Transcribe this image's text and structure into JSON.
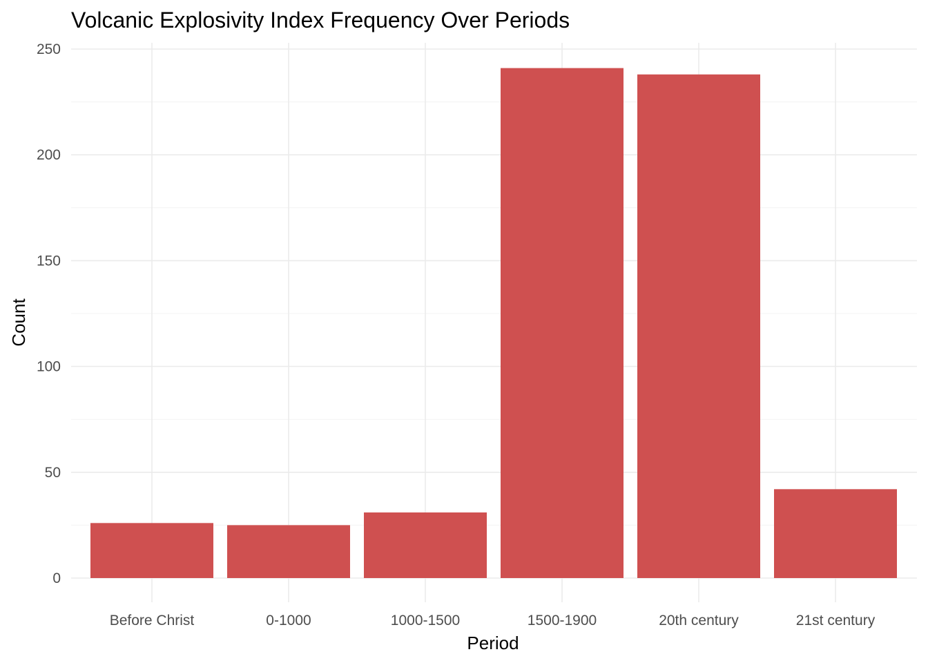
{
  "chart_data": {
    "type": "bar",
    "title": "Volcanic Explosivity Index Frequency Over Periods",
    "xlabel": "Period",
    "ylabel": "Count",
    "categories": [
      "Before Christ",
      "0-1000",
      "1000-1500",
      "1500-1900",
      "20th century",
      "21st century"
    ],
    "values": [
      26,
      25,
      31,
      241,
      238,
      42
    ],
    "ylim": [
      0,
      250
    ],
    "yticks": [
      "0",
      "50",
      "100",
      "150",
      "200",
      "250"
    ],
    "bar_color": "#CF5050",
    "grid": true,
    "legend": "none"
  }
}
